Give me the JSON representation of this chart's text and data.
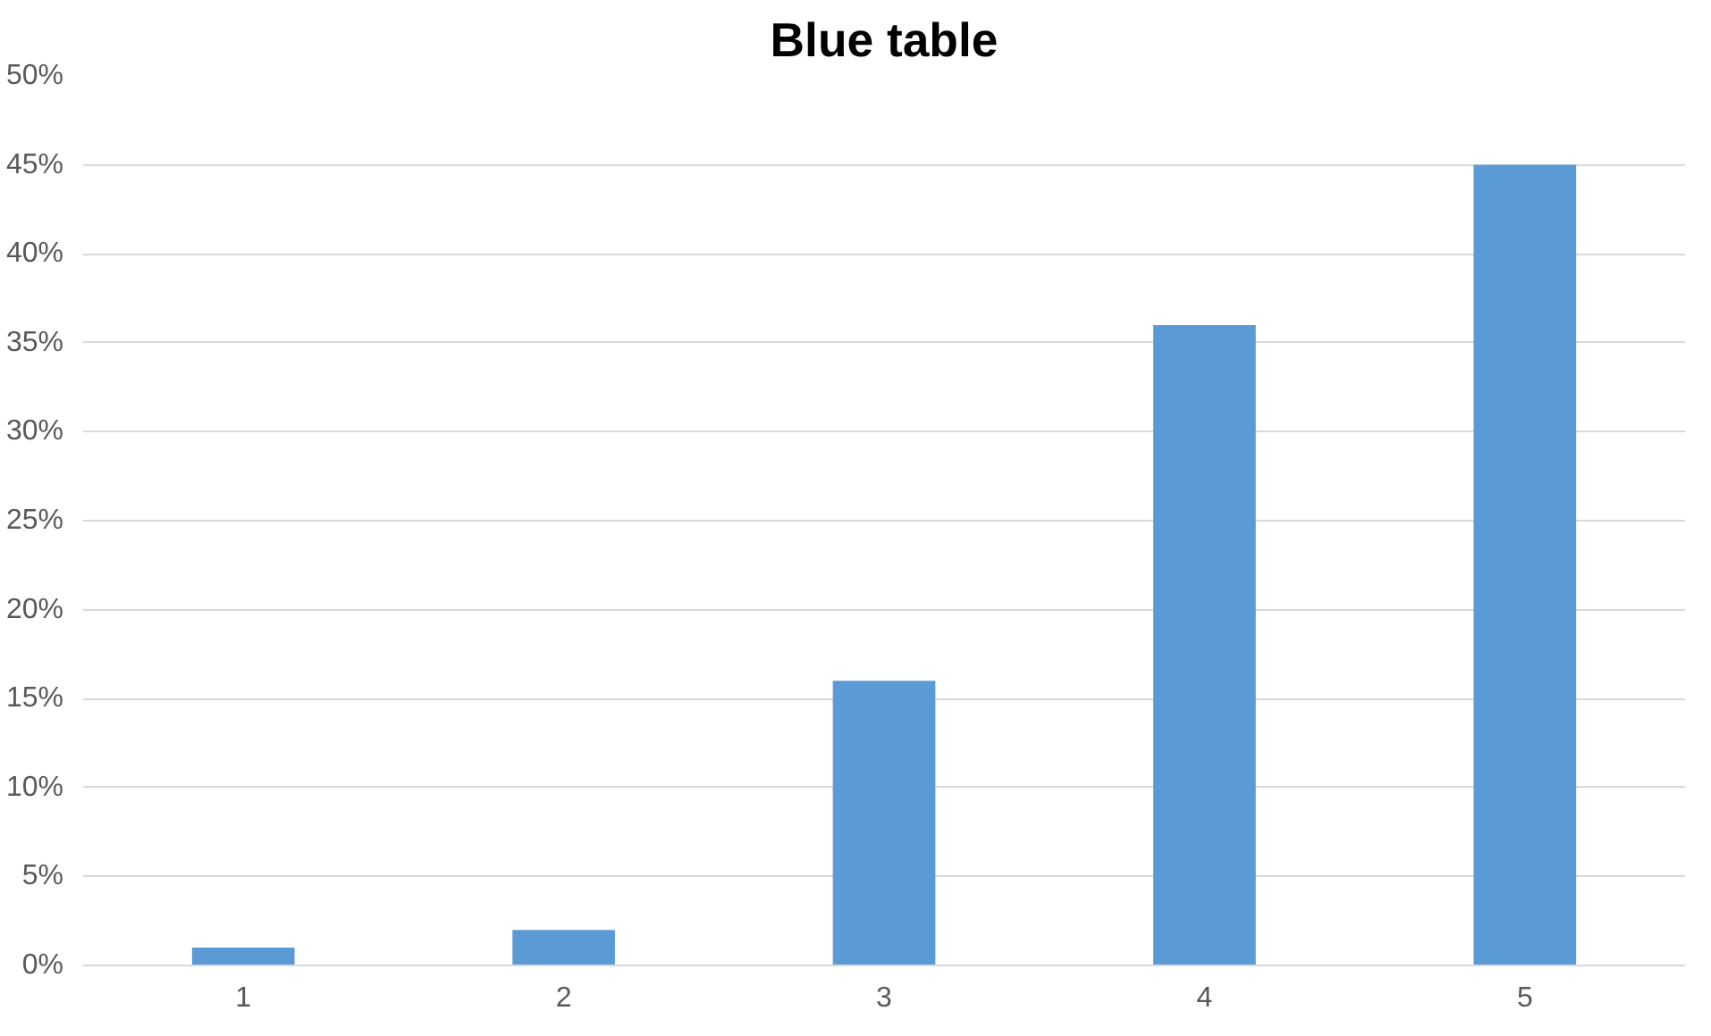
{
  "chart_data": {
    "type": "bar",
    "title": "Blue table",
    "categories": [
      "1",
      "2",
      "3",
      "4",
      "5"
    ],
    "values": [
      1,
      2,
      16,
      36,
      45
    ],
    "color": "#5b9bd5",
    "ylim": [
      0,
      50
    ],
    "yticks": [
      {
        "value": 0,
        "label": "0%"
      },
      {
        "value": 5,
        "label": "5%"
      },
      {
        "value": 10,
        "label": "10%"
      },
      {
        "value": 15,
        "label": "15%"
      },
      {
        "value": 20,
        "label": "20%"
      },
      {
        "value": 25,
        "label": "25%"
      },
      {
        "value": 30,
        "label": "30%"
      },
      {
        "value": 35,
        "label": "35%"
      },
      {
        "value": 40,
        "label": "40%"
      },
      {
        "value": 45,
        "label": "45%"
      },
      {
        "value": 50,
        "label": "50%"
      }
    ],
    "grid": "y"
  }
}
